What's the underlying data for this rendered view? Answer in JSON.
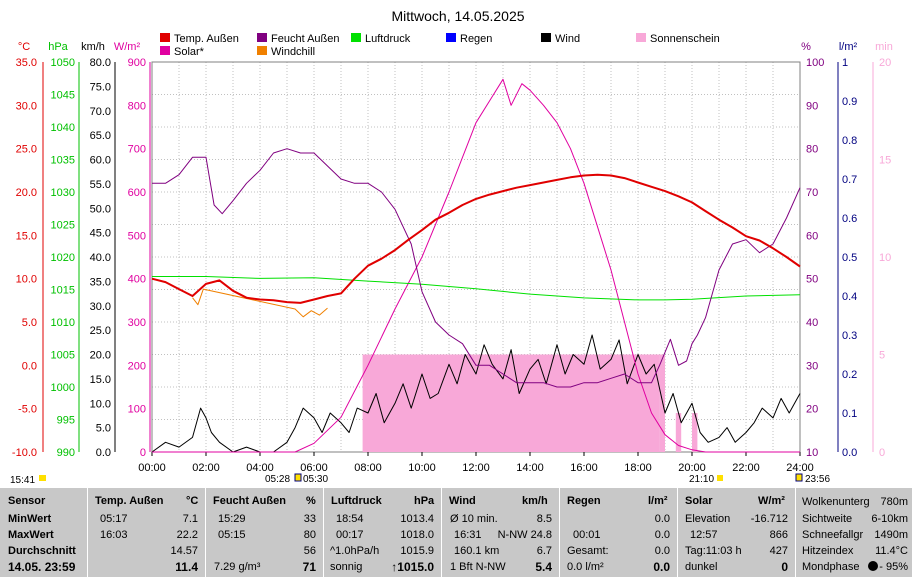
{
  "title": "Mittwoch, 14.05.2025",
  "legend": [
    {
      "label": "Temp. Außen",
      "color": "#e00000"
    },
    {
      "label": "Feucht Außen",
      "color": "#800080"
    },
    {
      "label": "Luftdruck",
      "color": "#00e000"
    },
    {
      "label": "Regen",
      "color": "#0000ff"
    },
    {
      "label": "Wind",
      "color": "#000000"
    },
    {
      "label": "Sonnenschein",
      "color": "#f8a8d8"
    },
    {
      "label": "Solar*",
      "color": "#e000a0"
    },
    {
      "label": "Windchill",
      "color": "#f08000"
    }
  ],
  "axes": {
    "temp": {
      "unit": "°C",
      "color": "#e00000",
      "ticks": [
        "35.0",
        "30.0",
        "25.0",
        "20.0",
        "15.0",
        "10.0",
        "5.0",
        "0.0",
        "-5.0",
        "-10.0"
      ]
    },
    "pressure": {
      "unit": "hPa",
      "color": "#00c000",
      "ticks": [
        "1050",
        "1045",
        "1040",
        "1035",
        "1030",
        "1025",
        "1020",
        "1015",
        "1010",
        "1005",
        "1000",
        "995",
        "990"
      ]
    },
    "wind": {
      "unit": "km/h",
      "color": "#000000",
      "ticks": [
        "80.0",
        "75.0",
        "70.0",
        "65.0",
        "60.0",
        "55.0",
        "50.0",
        "45.0",
        "40.0",
        "35.0",
        "30.0",
        "25.0",
        "20.0",
        "15.0",
        "10.0",
        "5.0",
        "0.0"
      ]
    },
    "solar": {
      "unit": "W/m²",
      "color": "#e000a0",
      "ticks": [
        "900",
        "800",
        "700",
        "600",
        "500",
        "400",
        "300",
        "200",
        "100",
        "0"
      ]
    },
    "humidity": {
      "unit": "%",
      "color": "#800080",
      "ticks": [
        "100",
        "90",
        "80",
        "70",
        "60",
        "50",
        "40",
        "30",
        "20",
        "10"
      ]
    },
    "rain": {
      "unit": "l/m²",
      "color": "#000080",
      "ticks": [
        "1",
        "0.9",
        "0.8",
        "0.7",
        "0.6",
        "0.5",
        "0.4",
        "0.3",
        "0.2",
        "0.1",
        "0.0"
      ]
    },
    "sun": {
      "unit": "min",
      "color": "#f8a8d8",
      "ticks": [
        "20",
        "15",
        "10",
        "5",
        "0"
      ]
    },
    "time": {
      "ticks": [
        "00:00",
        "02:00",
        "04:00",
        "06:00",
        "08:00",
        "10:00",
        "12:00",
        "14:00",
        "16:00",
        "18:00",
        "20:00",
        "22:00",
        "24:00"
      ]
    }
  },
  "markers": {
    "left_time": "15:41",
    "sunrise": "05:28",
    "sunrise2": "05:30",
    "moonset": "21:10",
    "right_time": "23:56"
  },
  "chart_data": {
    "type": "line",
    "title": "Mittwoch, 14.05.2025",
    "x_unit": "hour of day",
    "xlim": [
      0,
      24
    ],
    "series": [
      {
        "name": "Temp. Außen",
        "unit": "°C",
        "ylim": [
          -10,
          35
        ],
        "color": "#e00000",
        "x": [
          0,
          0.5,
          1,
          1.5,
          2,
          2.5,
          3,
          3.5,
          4,
          4.5,
          5,
          5.5,
          6,
          6.5,
          7,
          7.5,
          8,
          8.5,
          9,
          9.5,
          10,
          10.5,
          11,
          11.5,
          12,
          12.5,
          13,
          13.5,
          14,
          14.5,
          15,
          15.5,
          16,
          16.5,
          17,
          17.5,
          18,
          18.5,
          19,
          19.5,
          20,
          20.5,
          21,
          21.5,
          22,
          22.5,
          23,
          23.5,
          24
        ],
        "y": [
          10,
          9.6,
          8.8,
          8.0,
          9.4,
          9.8,
          8.6,
          7.8,
          7.6,
          7.5,
          7.3,
          7.2,
          7.6,
          8.0,
          8.3,
          10.0,
          11.5,
          12.3,
          13.3,
          14.5,
          15.6,
          16.8,
          17.6,
          18.5,
          19.2,
          19.7,
          20.1,
          20.5,
          20.8,
          21.1,
          21.4,
          21.7,
          21.9,
          22.0,
          21.9,
          21.6,
          21.1,
          20.6,
          20.1,
          19.5,
          18.8,
          17.8,
          16.8,
          15.9,
          14.9,
          14.4,
          13.5,
          12.5,
          11.4
        ]
      },
      {
        "name": "Windchill",
        "unit": "°C",
        "color": "#f08000",
        "x": [
          1.5,
          1.7,
          1.9,
          5.3,
          5.6,
          5.9,
          6.2,
          6.5
        ],
        "y": [
          7.8,
          7.0,
          8.8,
          6.5,
          5.6,
          6.3,
          5.8,
          6.6
        ]
      },
      {
        "name": "Feucht Außen",
        "unit": "%",
        "ylim": [
          10,
          100
        ],
        "color": "#800080",
        "x": [
          0,
          0.5,
          1,
          1.5,
          2,
          2.3,
          2.6,
          3,
          3.5,
          4,
          4.5,
          5,
          5.5,
          6,
          6.5,
          7,
          7.5,
          8,
          8.5,
          9,
          9.3,
          9.6,
          10,
          10.5,
          11,
          11.5,
          12,
          12.5,
          13,
          13.5,
          14,
          14.5,
          15,
          15.5,
          16,
          16.5,
          17,
          17.5,
          18,
          18.5,
          18.8,
          19.2,
          19.5,
          19.8,
          20,
          20.2,
          20.5,
          21,
          21.5,
          22,
          22.5,
          23,
          23.5,
          24
        ],
        "y": [
          72,
          72,
          74,
          78,
          78,
          67,
          65,
          68,
          72,
          75,
          79,
          80,
          79,
          79,
          76,
          73,
          72,
          72,
          70,
          66,
          62,
          58,
          47,
          40,
          37,
          35,
          30,
          30,
          28,
          26,
          26,
          26,
          25,
          25,
          26,
          26,
          27,
          28,
          26,
          26,
          30,
          36,
          30,
          31,
          35,
          37,
          41,
          52,
          58,
          59,
          56,
          58,
          64,
          71
        ]
      },
      {
        "name": "Luftdruck",
        "unit": "hPa",
        "ylim": [
          990,
          1050
        ],
        "color": "#00e000",
        "x": [
          0,
          2,
          4,
          6,
          8,
          10,
          12,
          14,
          16,
          18,
          19,
          20,
          22,
          24
        ],
        "y": [
          1017.0,
          1017.0,
          1016.7,
          1016.8,
          1016.3,
          1015.8,
          1015.1,
          1014.3,
          1013.7,
          1013.4,
          1013.4,
          1013.5,
          1014.0,
          1014.2
        ]
      },
      {
        "name": "Solar*",
        "unit": "W/m²",
        "ylim": [
          0,
          900
        ],
        "color": "#e000a0",
        "x": [
          0,
          5.3,
          6,
          7,
          8,
          9,
          10,
          11,
          11.5,
          12,
          12.5,
          13,
          13.3,
          13.7,
          14,
          14.5,
          15,
          15.5,
          16,
          16.5,
          17,
          17.5,
          18,
          18.5,
          19,
          19.5,
          20,
          20.5,
          21,
          21.5,
          24
        ],
        "y": [
          0,
          0,
          20,
          80,
          200,
          330,
          450,
          600,
          680,
          760,
          810,
          860,
          800,
          850,
          835,
          800,
          760,
          700,
          620,
          520,
          420,
          300,
          180,
          90,
          40,
          15,
          5,
          0,
          0,
          0,
          0
        ]
      },
      {
        "name": "Wind",
        "unit": "km/h",
        "ylim": [
          0,
          80
        ],
        "color": "#000000",
        "x": [
          0,
          0.5,
          1,
          1.5,
          1.8,
          2,
          2.2,
          2.5,
          3,
          3.5,
          4,
          4.5,
          5,
          5.3,
          5.6,
          6,
          6.3,
          6.6,
          7,
          7.3,
          7.6,
          8,
          8.3,
          8.6,
          9,
          9.3,
          9.6,
          10,
          10.3,
          10.6,
          11,
          11.3,
          11.6,
          12,
          12.3,
          12.6,
          13,
          13.3,
          13.6,
          14,
          14.3,
          14.6,
          15,
          15.3,
          15.6,
          16,
          16.3,
          16.6,
          17,
          17.3,
          17.6,
          18,
          18.3,
          18.6,
          19,
          19.3,
          19.6,
          20,
          20.3,
          20.6,
          21,
          21.3,
          21.6,
          22,
          22.3,
          22.6,
          23,
          23.3,
          23.6,
          24
        ],
        "y": [
          0,
          2,
          1,
          3,
          9,
          7,
          4,
          2,
          0,
          1,
          0,
          0,
          2,
          5,
          9,
          7,
          4,
          8,
          6,
          4,
          9,
          8,
          12,
          6,
          10,
          14,
          9,
          16,
          11,
          12,
          18,
          14,
          20,
          16,
          22,
          18,
          15,
          21,
          12,
          17,
          19,
          14,
          22,
          16,
          20,
          18,
          24,
          17,
          19,
          23,
          14,
          20,
          16,
          18,
          8,
          12,
          6,
          10,
          4,
          2,
          3,
          5,
          2,
          4,
          6,
          9,
          7,
          11,
          8,
          12
        ]
      },
      {
        "name": "Sonnenschein",
        "unit": "min",
        "ylim": [
          0,
          20
        ],
        "color": "#f8a8d8",
        "x": [
          7.8,
          18.8,
          19.0,
          19.4,
          19.6,
          20.0,
          20.2,
          20.4
        ],
        "y": [
          5,
          5,
          0,
          2,
          0,
          2,
          0,
          2
        ]
      }
    ]
  },
  "stats": {
    "sensor": {
      "header": "Sensor",
      "rows": [
        "MinWert",
        "MaxWert",
        "Durchschnitt",
        "14.05. 23:59"
      ]
    },
    "temp": {
      "header": "Temp. Außen",
      "unit": "°C",
      "min_time": "05:17",
      "min": "7.1",
      "max_time": "16:03",
      "max": "22.2",
      "avg": "14.57",
      "now": "11.4"
    },
    "hum": {
      "header": "Feucht Außen",
      "unit": "%",
      "min_time": "15:29",
      "min": "33",
      "max_time": "05:15",
      "max": "80",
      "avg": "56",
      "extra": "7.29 g/m³",
      "now": "71"
    },
    "press": {
      "header": "Luftdruck",
      "unit": "hPa",
      "min_time": "18:54",
      "min": "1013.4",
      "max_time": "00:17",
      "max": "1018.0",
      "trend": "^1.0hPa/h",
      "avg": "1015.9",
      "desc": "sonnig",
      "now": "↑1015.0"
    },
    "wind": {
      "header": "Wind",
      "unit": "km/h",
      "r1a": "Ø 10 min.",
      "r1b": "8.5",
      "r2a": "16:31",
      "r2b": "N-NW 24.8",
      "r3a": "160.1 km",
      "r3b": "6.7",
      "r4a": "1 Bft N-NW",
      "r4b": "5.4"
    },
    "rain": {
      "header": "Regen",
      "unit": "l/m²",
      "r1b": "0.0",
      "r2a": "00:01",
      "r2b": "0.0",
      "r3a": "Gesamt:",
      "r3b": "0.0",
      "r4a": "0.0 l/m²",
      "r4b": "0.0"
    },
    "solar": {
      "header": "Solar",
      "unit": "W/m²",
      "r1a": "Elevation",
      "r1b": "-16.712",
      "r2a": "12:57",
      "r2b": "866",
      "r3a": "Tag:11:03 h",
      "r3b": "427",
      "r4a": "dunkel",
      "r4b": "0"
    },
    "extra": {
      "r0a": "Wolkenunterg",
      "r0b": "780m",
      "r1a": "Sichtweite",
      "r1b": "6-10km",
      "r2a": "Schneefallgr",
      "r2b": "1490m",
      "r3a": "Hitzeindex",
      "r3b": "11.4°C",
      "r4a": "Mondphase",
      "r4b": "- 95%"
    }
  }
}
